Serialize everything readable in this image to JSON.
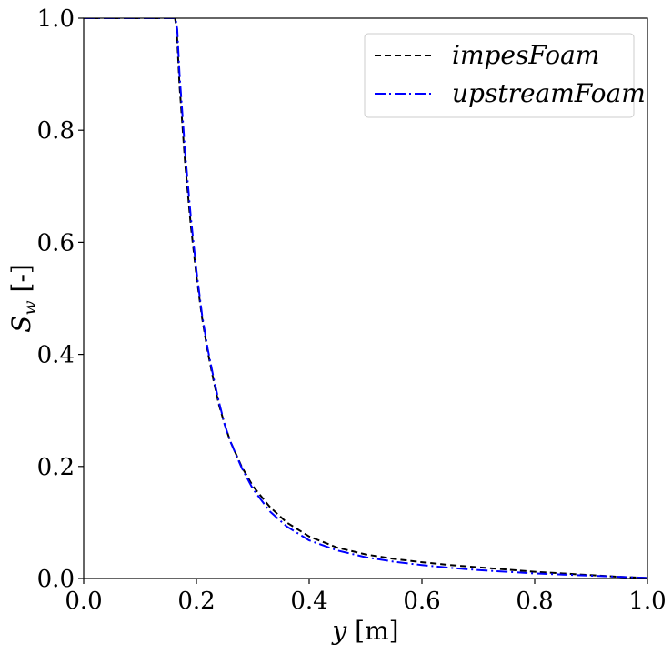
{
  "chart_data": {
    "type": "line",
    "xlabel": {
      "var": "y",
      "unit": " [m]"
    },
    "ylabel": {
      "var": "S",
      "sub": "w",
      "unit": " [-]"
    },
    "xlim": [
      0,
      1
    ],
    "ylim": [
      0,
      1
    ],
    "xticks": [
      "0.0",
      "0.2",
      "0.4",
      "0.6",
      "0.8",
      "1.0"
    ],
    "yticks": [
      "0.0",
      "0.2",
      "0.4",
      "0.6",
      "0.8",
      "1.0"
    ],
    "grid": false,
    "legend_position": "top-right",
    "series": [
      {
        "name": "impesFoam",
        "color": "#000000",
        "style": "dashed",
        "x": [
          0.0,
          0.1,
          0.162,
          0.165,
          0.17,
          0.18,
          0.19,
          0.2,
          0.21,
          0.22,
          0.23,
          0.24,
          0.25,
          0.26,
          0.28,
          0.3,
          0.33,
          0.36,
          0.4,
          0.45,
          0.5,
          0.55,
          0.6,
          0.65,
          0.7,
          0.75,
          0.8,
          0.85,
          0.9,
          0.95,
          1.0
        ],
        "y": [
          1.0,
          1.0,
          1.0,
          0.98,
          0.88,
          0.74,
          0.63,
          0.54,
          0.465,
          0.405,
          0.355,
          0.31,
          0.275,
          0.245,
          0.2,
          0.165,
          0.128,
          0.1,
          0.075,
          0.055,
          0.043,
          0.035,
          0.029,
          0.024,
          0.02,
          0.016,
          0.012,
          0.009,
          0.006,
          0.003,
          0.001
        ]
      },
      {
        "name": "upstreamFoam",
        "color": "#0000ff",
        "style": "dashdot",
        "x": [
          0.0,
          0.1,
          0.163,
          0.166,
          0.17,
          0.18,
          0.19,
          0.2,
          0.21,
          0.22,
          0.23,
          0.24,
          0.25,
          0.26,
          0.28,
          0.3,
          0.33,
          0.36,
          0.4,
          0.45,
          0.5,
          0.55,
          0.6,
          0.65,
          0.7,
          0.75,
          0.8,
          0.85,
          0.9,
          0.95,
          1.0
        ],
        "y": [
          1.0,
          1.0,
          1.0,
          0.98,
          0.9,
          0.76,
          0.645,
          0.55,
          0.47,
          0.41,
          0.36,
          0.315,
          0.275,
          0.245,
          0.198,
          0.16,
          0.12,
          0.093,
          0.068,
          0.05,
          0.038,
          0.03,
          0.024,
          0.019,
          0.015,
          0.012,
          0.009,
          0.007,
          0.005,
          0.003,
          0.001
        ]
      }
    ]
  }
}
